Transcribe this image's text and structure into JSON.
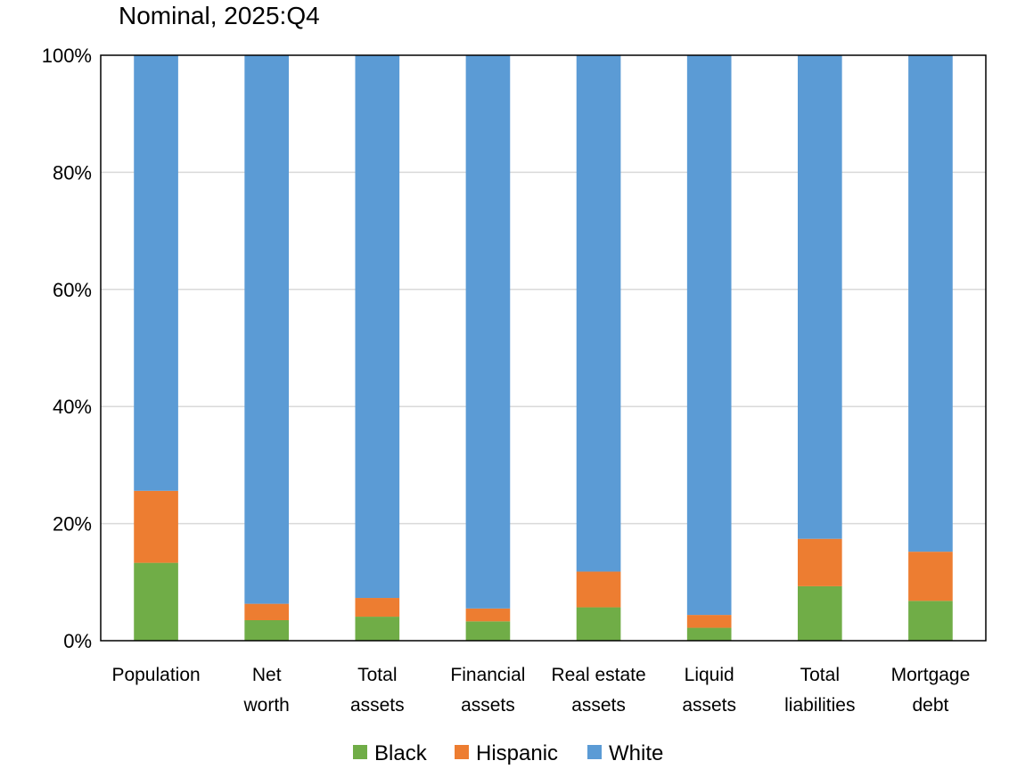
{
  "chart_data": {
    "type": "bar",
    "stacked": true,
    "title": "Nominal, 2025:Q4",
    "xlabel": "",
    "ylabel": "",
    "ylim": [
      0,
      100
    ],
    "y_ticks": [
      "0%",
      "20%",
      "40%",
      "60%",
      "80%",
      "100%"
    ],
    "y_tick_values": [
      0,
      20,
      40,
      60,
      80,
      100
    ],
    "grid": true,
    "legend_position": "bottom",
    "categories": [
      [
        "Population"
      ],
      [
        "Net",
        "worth"
      ],
      [
        "Total",
        "assets"
      ],
      [
        "Financial",
        "assets"
      ],
      [
        "Real estate",
        "assets"
      ],
      [
        "Liquid",
        "assets"
      ],
      [
        "Total",
        "liabilities"
      ],
      [
        "Mortgage",
        "debt"
      ]
    ],
    "series": [
      {
        "name": "Black",
        "color": "#70AD47",
        "values": [
          13.3,
          3.5,
          4.1,
          3.3,
          5.7,
          2.2,
          9.3,
          6.8
        ]
      },
      {
        "name": "Hispanic",
        "color": "#ED7D31",
        "values": [
          12.3,
          2.8,
          3.2,
          2.2,
          6.1,
          2.2,
          8.1,
          8.4
        ]
      },
      {
        "name": "White",
        "color": "#5B9BD5",
        "values": [
          74.4,
          93.7,
          92.7,
          94.5,
          88.2,
          95.6,
          82.6,
          84.8
        ]
      }
    ]
  }
}
